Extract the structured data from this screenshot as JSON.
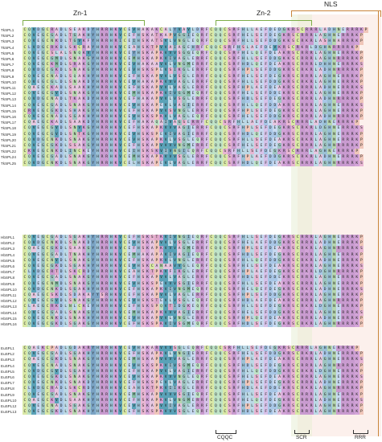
{
  "domains": {
    "zn1": "Zn-1",
    "zn2": "Zn-2",
    "nls": "NLS"
  },
  "motifs": {
    "cqqc": "CQQC",
    "scr": "SCR",
    "rrr": "RRR"
  },
  "groups": [
    {
      "id": "tk",
      "names": [
        "TkSPL1",
        "TkSPL2",
        "TkSPL3",
        "TkSPL4",
        "TkSPL5",
        "TkSPL6",
        "TkSPL7",
        "TkSPL8",
        "TkSPL9",
        "TkSPL10",
        "TkSPL11",
        "TkSPL12",
        "TkSPL13",
        "TkSPL14",
        "TkSPL15",
        "TkSPL16",
        "TkSPL17",
        "TkSPL18",
        "TkSPL19",
        "TkSPL20",
        "TkSPL21",
        "TkSPL22",
        "TkSPL24",
        "TkSPL25"
      ],
      "seqs": [
        "CQVDGCRADLSEAKDYHRRHKVCEVHAKAKCALYVAVLDRFCQQCSRFHLLAEFDEDGKRSCRRRLADHNERRRKP",
        "CQVEGCGADLTGAKHYHRRHKVCEFHSKATKAPVGGIEQRFCQQCSRFHELSEFDEGKRSCRRRLAGHNERRRKP",
        "CQVEGCNKDLTGVKFYHRRHRICEIHSKATSVLVNGLEQRFCQQCSRFHLLSEFDDGKKSCRKRLASHNARRRKP",
        "CLVDGCRKDLSKCRAYHRRHKVCEAHSKTPVVAIAGEHRFCQQCSRFHSLAEFDEVKRSCRKRLDGHNRRRRKP",
        "CQVEGCSLALSNQKVYHRRHKVCEYHSKAPKVVVSGGEQRFCQQCSRFHELQEFDEAKRSCRRRLAGHNERRRKP",
        "CQVEGCGMDLSNAKGYHRRHKVCEMHSKAPKVIVAGLERRFCQQCSRFHLLSEFDDGKKSCRRRLAGHNRRRRKP",
        "CQVEGCKMDLSRAKGYHRRHKVCEVHAKAAVVLVNGMERRFCQQCSRFHDLQEFDEAKRSCRRRLDHHNERRRKS",
        "CQVDGCGKDLSNAKGYHRRHKVCEVHSKSPEVSIKGLERRFCQQCSRFHPLSEFDDGKRSCRKRLADHNRRRRKP",
        "CQVEGCNADLSQAKHYHRRHKVCEFHSKAPVVLVSGLERRFCQQCSRFHELSEFDEGKRSCRRRLAGHNERRRKP",
        "CQVEGCGLDLSNAKDYHRRHKVCEVHAKAPKVVVAGLERRFCQQCSRFHLLSEFDDGKRSCRKRLAGHNERRRKP",
        "CQAEGCKADLSAAKHYHRRHKVCEFHSKAPVVLVAGLERRFCQQCSRFHPLAEFDEAKRSCRRRLADHNERRRKS",
        "CQVEGCGVDLSNAKGYHRRHKVCEMHSKAPKVIVGGMEQRFCQQCSRFHELSEFDDEKRSCRKRLAGHNERRRKP",
        "CQVDGCNADLTKAKDYHRRHKVCEFHAKAPVVLVSGLERRFCQQCSRFHDLSEFDEGKRSCRRRLADHNRRRRKP",
        "CQVEGCGADLSNAKGYHRRHKVCEVHSKAPEVLVAGIERRFCQQCSRFHLLQEFDDAKRSCRRRLAGHNERRRKS",
        "CRVEGCGKDLSHAKGYHRRHKVCEFHSKAPVVSVNGLERRFCQQCSRFHPLSEFDEGKRSCRKRLAGHNERRRKP",
        "CQVEGCNADLSGAKHYHRRHKVCEVHSKSPKVLVAGLEQRFCQQCSRFHELSEFDDGKRSCRRRLADHNRRRRKP",
        "CQAEGCKADLSAAKDYHRRHKVCEFHAKAQAIVAGSERRFCQQCSRFHLLAEFDEAKRSCRRRLADHNERRRKP",
        "CQVEGCGVDLSNVKGYHRRHKVCEFHSKAPKVVVAGIERRFCQQCSRFHPLSEFDEGKRSCRKRLDGHNERRRKS",
        "CQVEGCGVDLSNTKGYHRRHKVCEVHSKSPEVIVAGIERRFCQQCSRFHDLQEFDDGKRSCRRRLAGHNERRRKP",
        "CQVDGCNKDLSNAKGYHRRHKVCEVHSKAPKVLVSGLEQRFCQQCSRFHLLSEFDEAKRSCRKRLAGHNERRRKP",
        "CQVEGCGKDLSSAKGYHRRHKVCEFHSKAPVVVVNGMERRFCQQCSRFHELSEFDEGKRSCRRRLAGHNRRRRKP",
        "CKVEGCNKDLINCKEYHRRHKVCEIHSKSKVIVNGIEQRFCQQCSRFHLLSEFDEGKRSCRRRLAGHNERRRKP",
        "CQVEGCGADLSNAKGYHRRHKVCEMHSKAPKVVVSGLERRFCQQCSRFHPLAEFDDGKRSCRKRLADHNERRRKP",
        "CQVDGCNKDLSNAKGYHRRHKVCELHSKAPEVLVAGLERRFCQQCSRFHDLQEFDEAKRSCRRRLAGHNRRRRKS"
      ]
    },
    {
      "id": "hb",
      "names": [
        "HbSPL1",
        "HbSPL2",
        "HbSPL3",
        "HbSPL4",
        "HbSPL5",
        "HbSPL6",
        "HbSPL7",
        "HbSPL8",
        "HbSPL9",
        "HbSPL10",
        "HbSPL11",
        "HbSPL12",
        "HbSPL13",
        "HbSPL14",
        "HbSPL15",
        "HbSPL16"
      ],
      "seqs": [
        "CQVEGCGADLSGAKHYHRRHKVCEFHSKSTKVIVNGIEQRFCQQCSRFHLLSEFDEGKRSCRRRLAGHNERRRKP",
        "CQVDGCNKDLSNAKDYHRRHKVCEVHSKAPVVLVSGLERRFCQQCSRFHELAEFDDGKRSCRRRLADHNERRRKP",
        "CQAEGCGKDLSAAKGYHRRHKVCEFHSKAPKVVVAGMERRFCQQCSRFHPLSEFDEAKRSCRKRLAGHNRRRRKS",
        "CQVEGCGADLTNAKHYHRRHKVCEMHAKAPAVIVAGIEQRFCQQCSRFHDLSEFDEGKRSCRRRLAGHNERRRKP",
        "CQVEGCNVDLSNAKGYHRRHKVCEFHSKAPKVLVNGLERRFCQQCSRFHLLQEFDDGKRSCRKRLADHNERRRKP",
        "CQVEGCGKDLSGAKHYHRRHKVCEVHSKCANAAVVGLEQRFCQQCSRFHELSEFDEAKRSCRRRLAGHNERRRKS",
        "CLVDGCRTDLSKCRDYHRRHKVCEAHSKTPKVFIKGLERRFCQQCSRFHPLAEFDEGKRSCRKRLDGHNRRRRKP",
        "CQVEGCGADLSNAKGYHRRHKVCEFHSKAPVVLVAGLERRFCQQCSRFHDLSEFDDEKRSCRRRLAGHNERRRKP",
        "CQVEGCNMDLSNAKGYHRRHKVCEVHSKSPEVVVSGIERRFCQQCSRFHLLSEFDEAKRSCRRRLAGHNERRRKP",
        "CQVDGCNKDLSGAKHYHRRHKVCEFHSKAPKVIVNGMEQRFCQQCSRFHELQEFDEGKRSCRKRLADHNERRRKS",
        "CQAEGCSKDLSDAKAYYSRHKVCEFHSKAPVVLVAGLERRFCQQCSRFHPLSEFDDGKRSCRRRLAGHNERRRKP",
        "CQVEGCGVDLSNAKGYHRRHKVCEVHSKSTEVLVSGLEQRFCQQCSRFHDLAEFDEAKRSCRRRLAGHNRRRRKP",
        "CLAEGCRKDLNLCKEYHRRHKVCEFHSKSPQVTIDGKEQRFCQQCSRFHLLSEFDEGKRSCRKRLDGHNERRRKP",
        "CQVEGCGADLSNAKGYHRRHKVCEMHSKAPKVVVAGIERRFCQQCSRFHELSEFDDGKRSCRRRLAGHNERRRKS",
        "CQVEGCNKDLSNAKHYHRRHKVCEVHSKAPVVLVNGLERRFCQQCSRFHPLQEFDEAKRSCRRRLADHNERRRKP",
        "CQVEGCGKDLSGAKGYHRRHKVCEFHSKSPKVIVSGMEQRFCQQCSRFHDLSEFDEGKRSCRKRLAGHNRRRRKP"
      ]
    },
    {
      "id": "eu",
      "names": [
        "EuSPL1",
        "EuSPL2",
        "EuSPL3",
        "EuSPL4",
        "EuSPL5",
        "EuSPL6",
        "EuSPL7",
        "EuSPL8",
        "EuSPL9",
        "EuSPL10",
        "EuSPL12",
        "EuSPL13"
      ],
      "seqs": [
        "CQAEKCPADLGDAKRYHRRHKVCEVHAKARVVVSGLEQRFCQQCSRFHLLSEFDEGKRSCRRRLAGHNERRRKP",
        "CQVEGCGADLSGAKHYHRRHKVCEFHSKAPKVLVNGIERRFCQQCSRFHELSEFDDGKRSCRKRLADHNERRRKP",
        "CQAEGCGKDLSNAKGYHRRHKVCEMHSKAPVVVVAGLERRFCQQCSRFHPLAEFDEAKRSCRRRLAGHNERRRKS",
        "CQVEGCNADLSNAKGYHRRHKVCEVHSKSPKVIVSGMEQRFCQQCSRFHDLSEFDEGKRSCRRRLAGHNRRRRKP",
        "CQVDGCGVDLSGAKHYHRRHKVCEFHSKAPVVLVAGIERRFCQQCSRFHLLQEFDDGKRSCRKRLDGHNERRRKP",
        "CQVEGCGKDLSNAKGYHRRHKVCEVHSKAPKVVVNGLEQRFCQQCSRFHELSEFDEAKRSCRRRLAGHNERRRKS",
        "CQVEGCNKDLSNAKDYHRRHKVCEFHSKSPEVLVAGLERRFCQQCSRFHPLSEFDEGKRSCRRRLADHNERRRKP",
        "CLVDGCRADLSKCRDYHRRHKVCEAHSKTPKVIIKGLERRFCQQCSRFHDLAEFDDEKRSCRKRLAGHNRRRRKP",
        "CQVEGCGADLSNAKGYHRRHKVCEMHSKAPVVVVSGIEQRFCQQCSRFHLLSEFDEAKRSCRRRLAGHNERRRKP",
        "CQAEGCKVDLSAAKHYHRRHKVCEFHSKAPKVLVNGMERRFCQQCSRFHELQEFDEGKRSCRRRLADHNERRRKS",
        "CQVEGCNADLSGAKGYHRRHKVCEVHSKAPVVIVAGLERRFCQQCSRFHPLSEFDDGKRSCRKRLAGHNERRRKP",
        "CQVEGCGKDLSNAKHYHRRHKVCEFHSKSPKVVVSGLEQRFCQQCSRFHDLSEFDEAKRSCRRRLAGHNRRRRKP"
      ]
    }
  ]
}
